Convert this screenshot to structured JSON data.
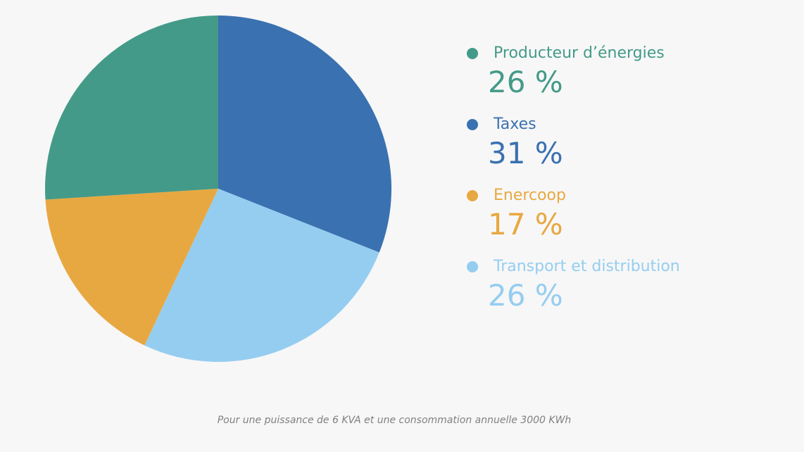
{
  "chart_data": {
    "type": "pie",
    "slices": [
      {
        "label": "Producteur d’énergies",
        "value": 26,
        "value_label": "26 %",
        "color": "#449a88"
      },
      {
        "label": "Taxes",
        "value": 31,
        "value_label": "31 %",
        "color": "#3a71b0"
      },
      {
        "label": "Enercoop",
        "value": 17,
        "value_label": "17 %",
        "color": "#e8a841"
      },
      {
        "label": "Transport et distribution",
        "value": 26,
        "value_label": "26 %",
        "color": "#95cdf0"
      }
    ],
    "legend_position": "right"
  },
  "footnote": "Pour une puissance de 6 KVA et une consommation annuelle 3000 KWh"
}
